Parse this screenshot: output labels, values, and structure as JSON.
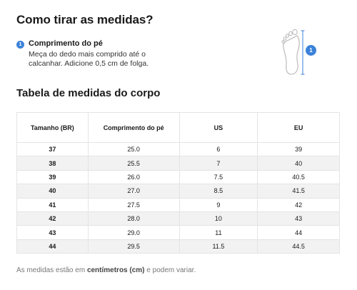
{
  "title": "Como tirar as medidas?",
  "measure": {
    "step": "1",
    "label": "Comprimento do pé",
    "description": "Meça do dedo mais comprido até o calcanhar. Adicione 0,5 cm de folga."
  },
  "illustration": {
    "icon": "foot-sole-icon",
    "badge": "1",
    "accent_color": "#3b82d9"
  },
  "table_title": "Tabela de medidas do corpo",
  "table": {
    "headers": [
      "Tamanho (BR)",
      "Comprimento do pé",
      "US",
      "EU"
    ],
    "rows": [
      [
        "37",
        "25.0",
        "6",
        "39"
      ],
      [
        "38",
        "25.5",
        "7",
        "40"
      ],
      [
        "39",
        "26.0",
        "7.5",
        "40.5"
      ],
      [
        "40",
        "27.0",
        "8.5",
        "41.5"
      ],
      [
        "41",
        "27.5",
        "9",
        "42"
      ],
      [
        "42",
        "28.0",
        "10",
        "43"
      ],
      [
        "43",
        "29.0",
        "11",
        "44"
      ],
      [
        "44",
        "29.5",
        "11.5",
        "44.5"
      ]
    ]
  },
  "footnote": {
    "prefix": "As medidas estão em ",
    "emphasis": "centímetros (cm)",
    "suffix": " e podem variar."
  }
}
